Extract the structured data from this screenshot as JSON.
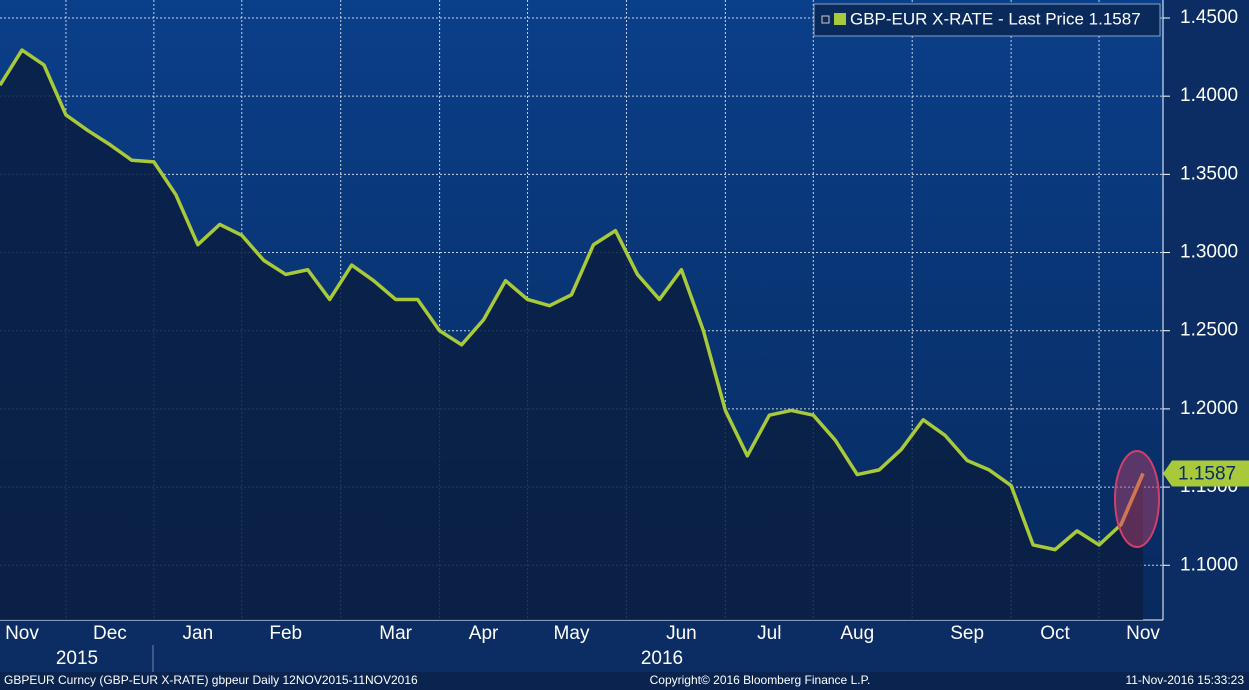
{
  "chart_data": {
    "type": "line",
    "categories": [
      null,
      "Nov",
      null,
      null,
      null,
      "Dec",
      null,
      null,
      null,
      "Jan",
      null,
      null,
      null,
      "Feb",
      null,
      null,
      null,
      null,
      "Mar",
      null,
      null,
      null,
      "Apr",
      null,
      null,
      null,
      "May",
      null,
      null,
      null,
      null,
      "Jun",
      null,
      null,
      null,
      "Jul",
      null,
      null,
      null,
      "Aug",
      null,
      null,
      null,
      null,
      "Sep",
      null,
      null,
      null,
      "Oct",
      null,
      null,
      null,
      "Nov"
    ],
    "year_labels": [
      "2015",
      "2016"
    ],
    "series": [
      {
        "name": "GBP-EUR X-RATE - Last Price 1.1587",
        "color": "#a8c93a",
        "values": [
          1.407,
          1.4295,
          1.42,
          1.388,
          1.378,
          1.369,
          1.359,
          1.358,
          1.337,
          1.305,
          1.318,
          1.311,
          1.295,
          1.286,
          1.289,
          1.27,
          1.292,
          1.282,
          1.27,
          1.27,
          1.25,
          1.241,
          1.257,
          1.282,
          1.27,
          1.266,
          1.273,
          1.305,
          1.314,
          1.286,
          1.27,
          1.289,
          1.25,
          1.199,
          1.17,
          1.196,
          1.199,
          1.196,
          1.18,
          1.158,
          1.161,
          1.174,
          1.193,
          1.183,
          1.167,
          1.161,
          1.151,
          1.113,
          1.11,
          1.122,
          1.113,
          1.126,
          1.1587
        ]
      }
    ],
    "ylim": [
      1.065,
      1.4615
    ],
    "yticks": [
      {
        "value": 1.1,
        "label": "1.1000"
      },
      {
        "value": 1.15,
        "label": "1.1500"
      },
      {
        "value": 1.2,
        "label": "1.2000"
      },
      {
        "value": 1.25,
        "label": "1.2500"
      },
      {
        "value": 1.3,
        "label": "1.3000"
      },
      {
        "value": 1.35,
        "label": "1.3500"
      },
      {
        "value": 1.4,
        "label": "1.4000"
      },
      {
        "value": 1.45,
        "label": "1.4500"
      }
    ],
    "grid": true
  },
  "footer": {
    "left": "GBPEUR Curncy (GBP-EUR X-RATE) gbpeur  Daily 12NOV2015-11NOV2016",
    "center": "Copyright© 2016 Bloomberg Finance L.P.",
    "right": "11-Nov-2016 15:33:23"
  }
}
